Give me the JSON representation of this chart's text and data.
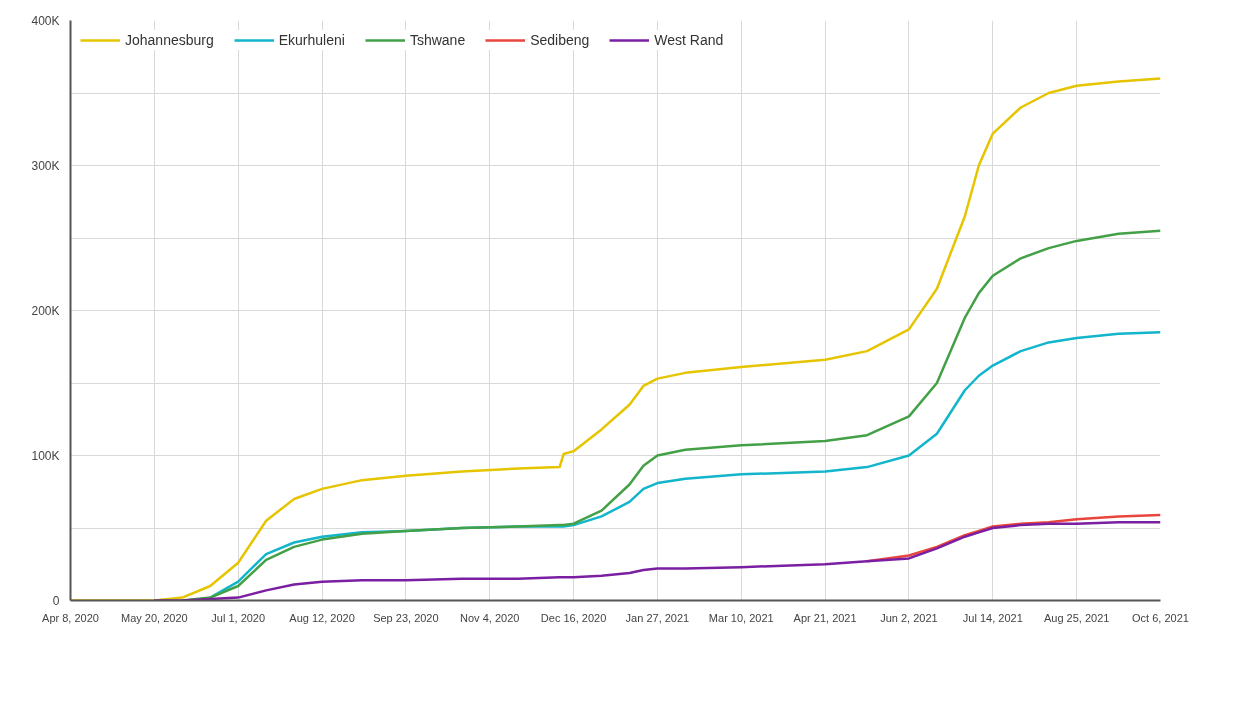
{
  "chart_data": {
    "type": "line",
    "x": [
      "2020-04-08",
      "2020-05-20",
      "2020-06-03",
      "2020-06-17",
      "2020-07-01",
      "2020-07-15",
      "2020-07-29",
      "2020-08-12",
      "2020-09-01",
      "2020-09-23",
      "2020-10-21",
      "2020-11-18",
      "2020-12-09",
      "2020-12-11",
      "2020-12-16",
      "2020-12-30",
      "2021-01-13",
      "2021-01-20",
      "2021-01-27",
      "2021-02-10",
      "2021-03-10",
      "2021-04-21",
      "2021-05-12",
      "2021-06-02",
      "2021-06-16",
      "2021-06-30",
      "2021-07-07",
      "2021-07-14",
      "2021-07-28",
      "2021-08-11",
      "2021-08-25",
      "2021-09-15",
      "2021-10-06"
    ],
    "series": [
      {
        "name": "Johannesburg",
        "color": "#e6c400",
        "values": [
          0,
          0,
          2000,
          10000,
          26000,
          55000,
          70000,
          77000,
          83000,
          86000,
          89000,
          91000,
          92000,
          101000,
          103000,
          118000,
          135000,
          148000,
          153000,
          157000,
          161000,
          166000,
          172000,
          187000,
          215000,
          265000,
          300000,
          322000,
          340000,
          350000,
          355000,
          358000,
          360000
        ]
      },
      {
        "name": "Ekurhuleni",
        "color": "#12b5cb",
        "values": [
          null,
          null,
          null,
          2000,
          13000,
          32000,
          40000,
          44000,
          47000,
          48000,
          50000,
          51000,
          51000,
          51000,
          52000,
          58000,
          68000,
          77000,
          81000,
          84000,
          87000,
          89000,
          92000,
          100000,
          115000,
          145000,
          155000,
          162000,
          172000,
          178000,
          181000,
          184000,
          185000
        ]
      },
      {
        "name": "Tshwane",
        "color": "#43a047",
        "values": [
          null,
          null,
          0,
          2000,
          10000,
          28000,
          37000,
          42000,
          46000,
          48000,
          50000,
          51000,
          52000,
          52000,
          53000,
          62000,
          80000,
          93000,
          100000,
          104000,
          107000,
          110000,
          114000,
          127000,
          150000,
          195000,
          212000,
          224000,
          236000,
          243000,
          248000,
          253000,
          255000
        ]
      },
      {
        "name": "Sedibeng",
        "color": "#e8453c",
        "values": [
          null,
          null,
          null,
          null,
          null,
          null,
          null,
          null,
          null,
          null,
          null,
          null,
          null,
          null,
          null,
          null,
          null,
          null,
          null,
          null,
          null,
          null,
          27000,
          31000,
          37000,
          45000,
          48000,
          51000,
          53000,
          54000,
          56000,
          58000,
          59000
        ]
      },
      {
        "name": "West Rand",
        "color": "#7b1fa2",
        "values": [
          null,
          0,
          0,
          1000,
          2000,
          7000,
          11000,
          13000,
          14000,
          14000,
          15000,
          15000,
          16000,
          16000,
          16000,
          17000,
          19000,
          21000,
          22000,
          22000,
          23000,
          25000,
          27000,
          29000,
          36000,
          44000,
          47000,
          50000,
          52000,
          53000,
          53000,
          54000,
          54000
        ]
      }
    ],
    "xlim": [
      "2020-04-08",
      "2021-10-06"
    ],
    "xticks": [
      {
        "value": "2020-04-08",
        "label": "Apr 8, 2020"
      },
      {
        "value": "2020-05-20",
        "label": "May 20, 2020"
      },
      {
        "value": "2020-07-01",
        "label": "Jul 1, 2020"
      },
      {
        "value": "2020-08-12",
        "label": "Aug 12, 2020"
      },
      {
        "value": "2020-09-23",
        "label": "Sep 23, 2020"
      },
      {
        "value": "2020-11-04",
        "label": "Nov 4, 2020"
      },
      {
        "value": "2020-12-16",
        "label": "Dec 16, 2020"
      },
      {
        "value": "2021-01-27",
        "label": "Jan 27, 2021"
      },
      {
        "value": "2021-03-10",
        "label": "Mar 10, 2021"
      },
      {
        "value": "2021-04-21",
        "label": "Apr 21, 2021"
      },
      {
        "value": "2021-06-02",
        "label": "Jun 2, 2021"
      },
      {
        "value": "2021-07-14",
        "label": "Jul 14, 2021"
      },
      {
        "value": "2021-08-25",
        "label": "Aug 25, 2021"
      },
      {
        "value": "2021-10-06",
        "label": "Oct 6, 2021"
      }
    ],
    "ylim": [
      0,
      400000
    ],
    "yticks": [
      {
        "value": 0,
        "label": "0"
      },
      {
        "value": 50000,
        "label": null
      },
      {
        "value": 100000,
        "label": "100K"
      },
      {
        "value": 150000,
        "label": null
      },
      {
        "value": 200000,
        "label": "200K"
      },
      {
        "value": 250000,
        "label": null
      },
      {
        "value": 300000,
        "label": "300K"
      },
      {
        "value": 350000,
        "label": null
      },
      {
        "value": 400000,
        "label": "400K"
      }
    ],
    "grid": true,
    "legend": "top left",
    "marker": "none",
    "line_style": "solid"
  }
}
